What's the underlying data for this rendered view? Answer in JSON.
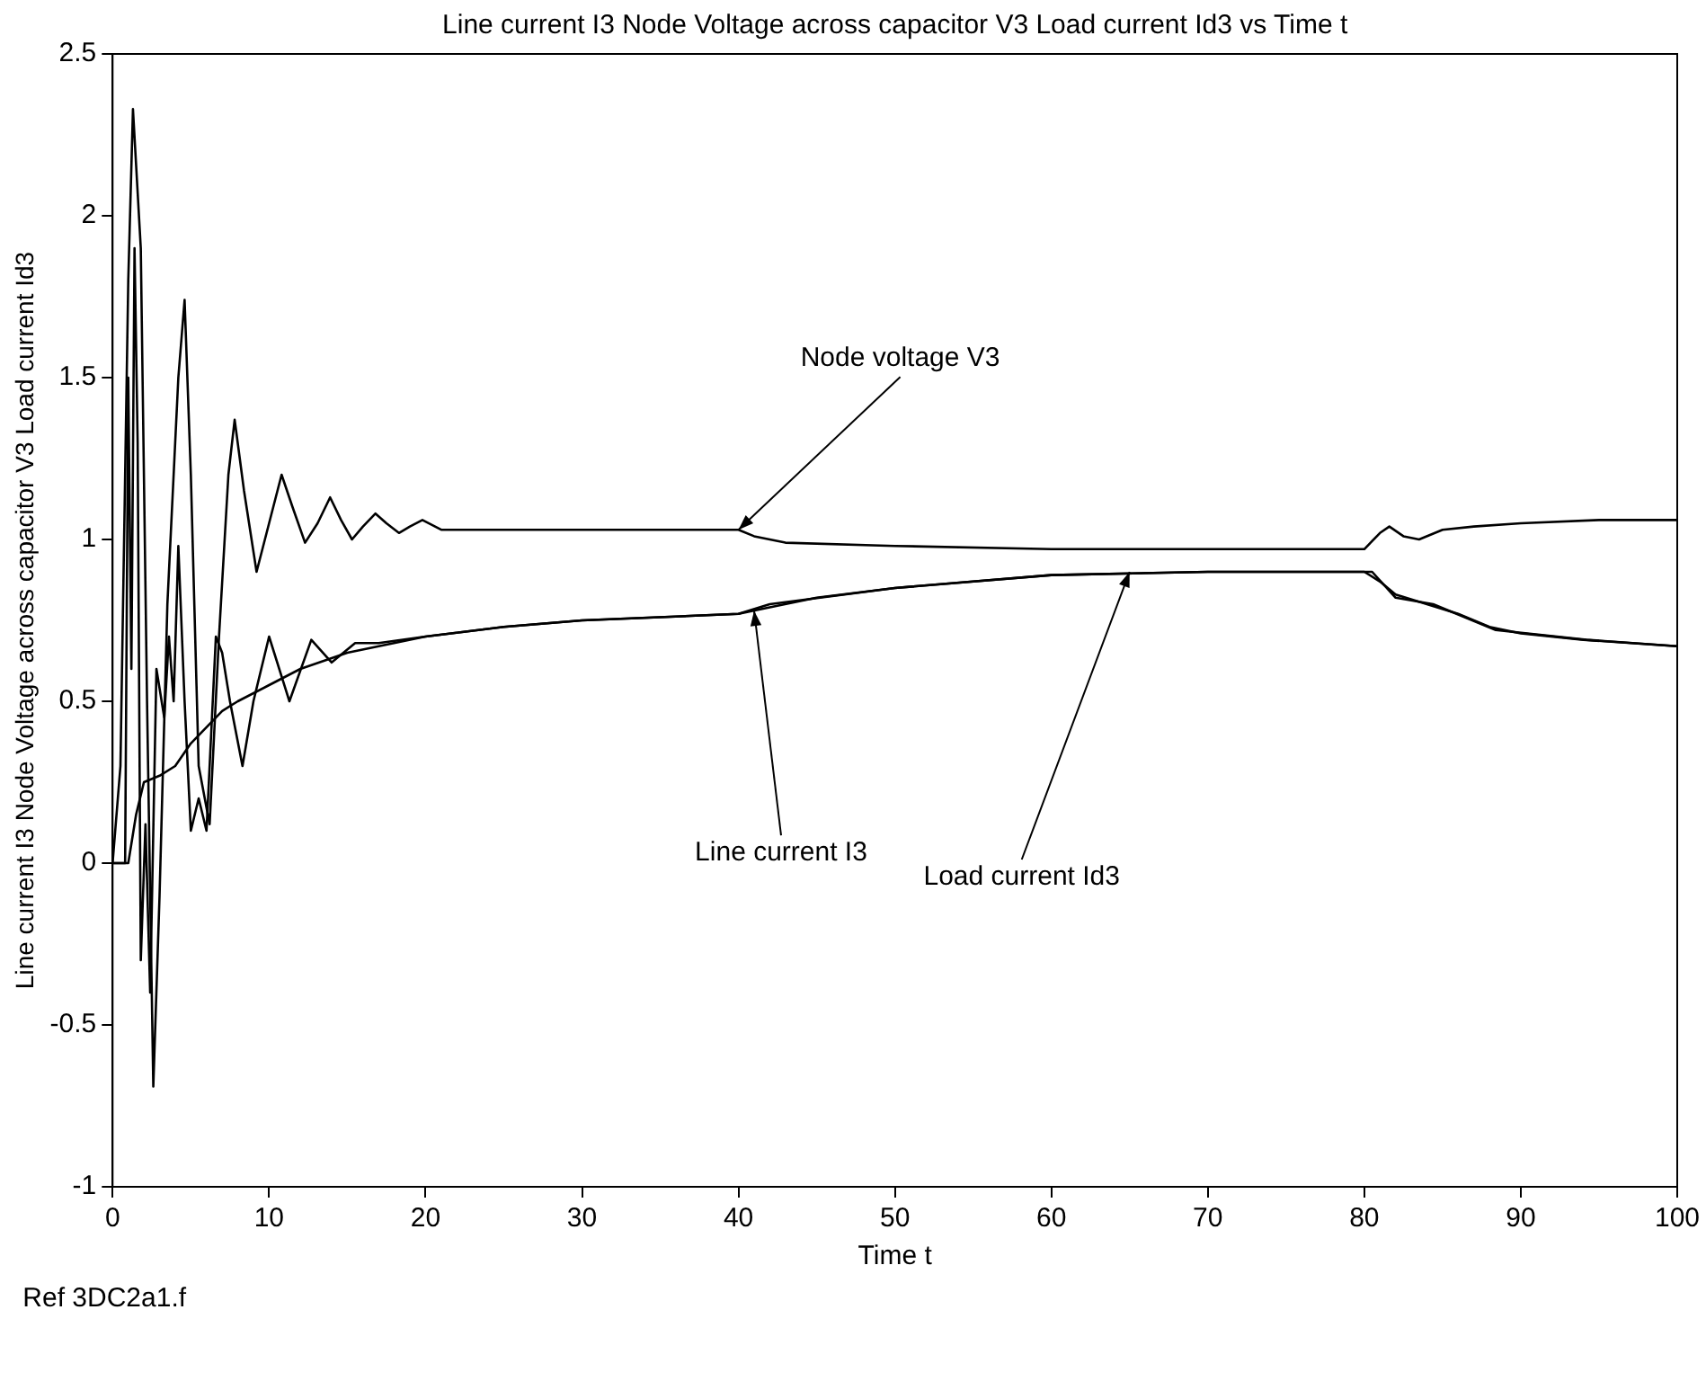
{
  "chart_data": {
    "type": "line",
    "title": "Line current I3 Node Voltage across capacitor V3 Load current Id3 vs Time t",
    "xlabel": "Time t",
    "ylabel": "Line current I3 Node Voltage across capacitor V3 Load current Id3",
    "xlim": [
      0,
      100
    ],
    "xticks": [
      0,
      10,
      20,
      30,
      40,
      50,
      60,
      70,
      80,
      90,
      100
    ],
    "ylim": [
      -1,
      2.5
    ],
    "yticks": [
      -1,
      -0.5,
      0,
      0.5,
      1,
      1.5,
      2,
      2.5
    ],
    "grid": false,
    "legend": false,
    "marker": "none",
    "line_style": "solid",
    "series": [
      {
        "color": "#000000",
        "x": [
          0,
          0.5,
          1.0,
          1.3,
          1.8,
          2.2,
          2.6,
          3.0,
          3.5,
          4.2,
          4.6,
          5.0,
          5.5,
          6.2,
          6.8,
          7.4,
          7.8,
          8.4,
          9.2,
          10.0,
          10.8,
          11.5,
          12.3,
          13.1,
          13.9,
          14.6,
          15.3,
          16.0,
          16.8,
          17.5,
          18.3,
          19.0,
          19.8,
          21,
          25,
          30,
          35,
          40,
          41,
          43,
          50,
          60,
          70,
          80,
          81,
          81.6,
          82.5,
          83.5,
          85,
          87,
          90,
          95,
          100
        ],
        "values": [
          0,
          0.3,
          1.8,
          2.33,
          1.9,
          0.5,
          -0.69,
          -0.1,
          0.8,
          1.5,
          1.74,
          1.2,
          0.3,
          0.12,
          0.7,
          1.2,
          1.37,
          1.15,
          0.9,
          1.05,
          1.2,
          1.1,
          0.99,
          1.05,
          1.13,
          1.06,
          1.0,
          1.04,
          1.08,
          1.05,
          1.02,
          1.04,
          1.06,
          1.03,
          1.03,
          1.03,
          1.03,
          1.03,
          1.01,
          0.99,
          0.98,
          0.97,
          0.97,
          0.97,
          1.02,
          1.04,
          1.01,
          1.0,
          1.03,
          1.04,
          1.05,
          1.06,
          1.06
        ]
      },
      {
        "color": "#000000",
        "x": [
          0,
          0.8,
          1.0,
          1.2,
          1.4,
          1.6,
          1.8,
          2.1,
          2.4,
          2.8,
          3.3,
          3.6,
          3.9,
          4.2,
          4.6,
          5.0,
          5.5,
          6.0,
          6.6,
          7.0,
          7.5,
          8.3,
          9,
          10,
          11.3,
          12.7,
          14,
          15.5,
          17,
          20,
          25,
          30,
          40,
          42,
          50,
          60,
          70,
          80,
          80.5,
          82,
          84.4,
          88.4,
          94.2,
          100
        ],
        "values": [
          0,
          0,
          1.5,
          0.6,
          1.9,
          1.3,
          -0.3,
          0.12,
          -0.4,
          0.6,
          0.45,
          0.7,
          0.5,
          0.98,
          0.5,
          0.1,
          0.2,
          0.1,
          0.7,
          0.65,
          0.5,
          0.3,
          0.5,
          0.7,
          0.5,
          0.69,
          0.62,
          0.68,
          0.68,
          0.7,
          0.73,
          0.75,
          0.77,
          0.8,
          0.85,
          0.89,
          0.9,
          0.9,
          0.9,
          0.82,
          0.8,
          0.72,
          0.69,
          0.67
        ]
      },
      {
        "color": "#000000",
        "x": [
          0,
          1,
          1.5,
          2,
          3,
          4,
          5,
          6,
          7,
          8,
          10,
          12,
          15,
          20,
          25,
          30,
          40,
          42,
          45,
          50,
          55,
          60,
          70,
          80,
          81,
          82,
          84,
          86,
          88,
          90,
          94,
          100
        ],
        "values": [
          0,
          0,
          0.15,
          0.25,
          0.27,
          0.3,
          0.37,
          0.42,
          0.47,
          0.5,
          0.55,
          0.6,
          0.65,
          0.7,
          0.73,
          0.75,
          0.77,
          0.79,
          0.82,
          0.85,
          0.87,
          0.89,
          0.9,
          0.9,
          0.87,
          0.83,
          0.8,
          0.77,
          0.73,
          0.71,
          0.69,
          0.67
        ]
      }
    ],
    "annotations": [
      {
        "text": "Node voltage V3",
        "x": 40,
        "y": 1.03
      },
      {
        "text": "Line current I3",
        "x": 41,
        "y": 0.78
      },
      {
        "text": "Load current Id3",
        "x": 65,
        "y": 0.9
      },
      "Ref 3DC2a1.f"
    ]
  }
}
